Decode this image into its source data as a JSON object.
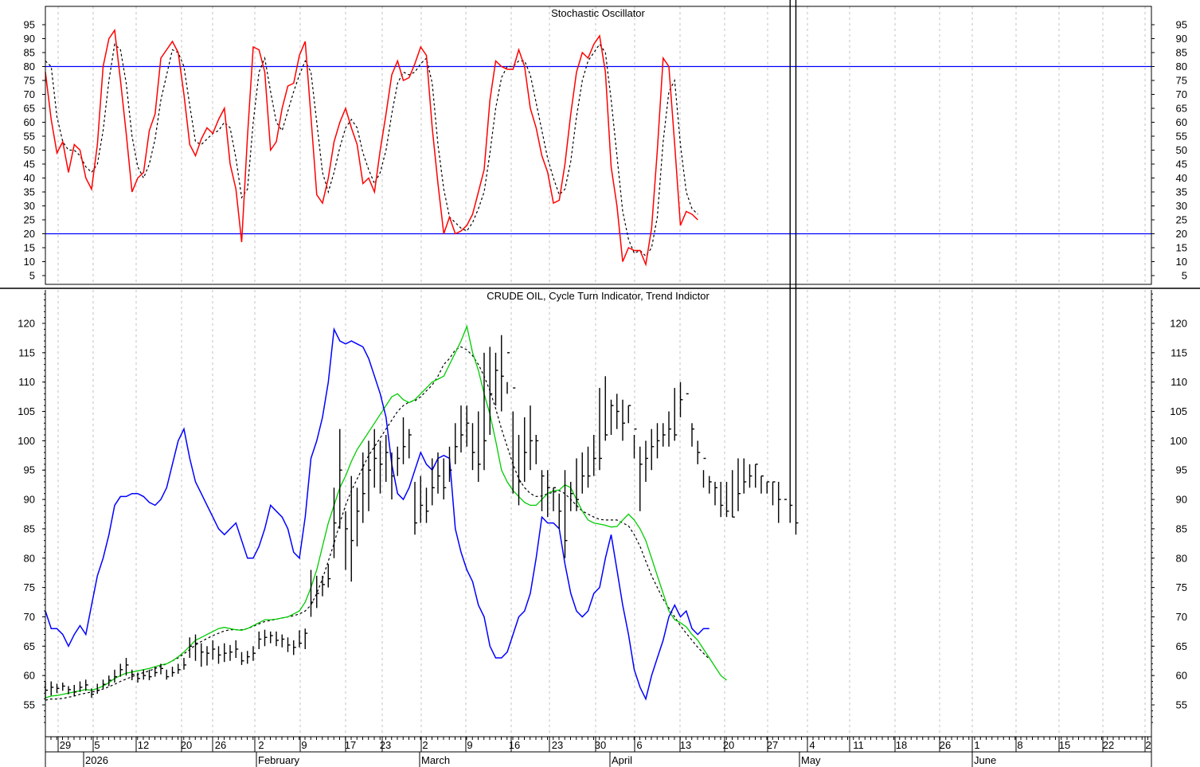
{
  "chart_data": [
    {
      "type": "line",
      "title": "Stochastic Oscillator",
      "ylim": [
        0,
        100
      ],
      "y_ticks": [
        5,
        10,
        15,
        20,
        25,
        30,
        35,
        40,
        45,
        50,
        55,
        60,
        65,
        70,
        75,
        80,
        85,
        90,
        95
      ],
      "reference_lines": [
        80,
        20
      ],
      "colors": {
        "k": "#ff0000",
        "d": "#000000",
        "ref": "#0000ff"
      },
      "series": [
        {
          "key": "k",
          "values": [
            78,
            61,
            49,
            53,
            42,
            52,
            50,
            40,
            36,
            52,
            80,
            90,
            93,
            75,
            56,
            35,
            40,
            42,
            57,
            63,
            83,
            86,
            89,
            85,
            70,
            52,
            48,
            54,
            58,
            56,
            61,
            65,
            45,
            36,
            17,
            55,
            87,
            86,
            78,
            50,
            53,
            65,
            73,
            74,
            84,
            89,
            62,
            34,
            31,
            40,
            53,
            60,
            65,
            58,
            52,
            38,
            40,
            35,
            50,
            63,
            77,
            82,
            75,
            76,
            81,
            87,
            84,
            58,
            38,
            20,
            26,
            20,
            21,
            23,
            27,
            35,
            43,
            68,
            82,
            80,
            79,
            79,
            86,
            80,
            65,
            58,
            48,
            42,
            31,
            32,
            45,
            63,
            78,
            85,
            83,
            88,
            91,
            78,
            44,
            30,
            10,
            15,
            14,
            14,
            9,
            22,
            50,
            83,
            80,
            52,
            23,
            28,
            27,
            25
          ]
        },
        {
          "key": "d",
          "values": [
            82,
            80,
            62,
            53,
            50,
            50,
            48,
            44,
            42,
            45,
            57,
            75,
            88,
            86,
            74,
            55,
            44,
            40,
            45,
            54,
            68,
            77,
            86,
            85,
            80,
            66,
            53,
            52,
            54,
            56,
            57,
            60,
            58,
            47,
            33,
            36,
            60,
            78,
            83,
            71,
            60,
            57,
            64,
            71,
            77,
            82,
            78,
            60,
            42,
            35,
            42,
            51,
            58,
            61,
            58,
            49,
            43,
            38,
            42,
            50,
            63,
            74,
            78,
            77,
            78,
            81,
            83,
            74,
            52,
            36,
            26,
            24,
            22,
            21,
            24,
            29,
            35,
            49,
            65,
            76,
            80,
            80,
            82,
            82,
            77,
            67,
            57,
            47,
            40,
            34,
            36,
            46,
            62,
            75,
            82,
            85,
            88,
            85,
            68,
            48,
            28,
            18,
            13,
            14,
            12,
            15,
            26,
            53,
            71,
            75,
            52,
            35,
            29,
            27
          ]
        }
      ],
      "x_ticks": [],
      "month_labels": []
    },
    {
      "type": "line",
      "title": "CRUDE OIL, Cycle Turn Indicator, Trend Indictor",
      "ylim": [
        51,
        125
      ],
      "y_ticks": [
        55,
        60,
        65,
        70,
        75,
        80,
        85,
        90,
        95,
        100,
        105,
        110,
        115,
        120
      ],
      "colors": {
        "price": "#000000",
        "cycle": "#0000ff",
        "trend_fast": "#00cc00",
        "trend_slow": "#000000"
      },
      "series": [
        {
          "key": "price_close",
          "values": [
            57.5,
            58,
            57.8,
            58.2,
            57.6,
            57.2,
            58,
            58.4,
            56.8,
            57.5,
            58.5,
            59.2,
            59.8,
            61,
            61.8,
            60.2,
            59.5,
            60,
            59.8,
            60.5,
            61.2,
            59.8,
            60.5,
            61,
            61.8,
            65,
            65.5,
            64,
            63.8,
            64.5,
            63.5,
            63.8,
            64,
            64.5,
            62.5,
            63.2,
            63.8,
            66.2,
            66.5,
            66.8,
            66,
            66.2,
            65.2,
            64.8,
            65.5,
            67.2,
            72.5,
            74,
            75.5,
            76.5,
            86,
            95,
            85,
            83,
            88,
            91,
            95,
            97,
            96,
            98,
            94,
            97,
            99,
            101,
            86,
            89,
            88,
            92,
            94,
            92,
            95,
            99,
            101,
            103,
            98,
            96,
            100,
            108,
            112,
            111,
            115,
            109,
            93,
            98,
            100,
            100,
            94,
            92,
            92,
            88,
            83,
            91,
            90,
            94,
            94,
            97,
            97,
            101,
            106,
            105,
            103,
            106,
            102,
            96,
            97,
            99,
            100,
            101,
            102,
            101,
            107,
            108,
            102,
            98,
            97,
            93,
            92,
            89,
            88,
            87,
            91,
            93,
            94,
            96,
            94,
            93,
            93,
            90,
            90,
            89,
            86
          ],
          "highs": [
            59,
            59,
            58.6,
            58.8,
            58.2,
            58.4,
            59,
            59.3,
            57.8,
            58.6,
            59.3,
            60,
            61,
            62,
            63,
            61,
            60.5,
            61,
            61,
            61.5,
            62,
            61,
            61.5,
            62,
            63,
            66.5,
            67,
            65.5,
            65,
            66,
            65,
            65.5,
            65.2,
            66,
            64,
            64.2,
            65,
            67.5,
            67.8,
            67.5,
            67.5,
            67,
            66.5,
            66,
            67.7,
            68,
            78,
            77,
            77,
            79,
            92,
            102,
            88,
            94,
            92,
            98,
            100,
            102,
            100,
            101,
            98,
            99,
            104,
            102,
            93,
            94,
            92,
            97,
            98,
            97,
            99,
            103,
            106,
            106,
            103,
            105,
            115,
            116,
            115,
            118,
            110,
            105,
            101,
            104,
            106,
            101,
            95,
            95,
            92,
            91,
            95,
            93,
            97,
            98,
            99,
            101,
            109,
            111,
            107,
            108,
            107,
            106,
            101,
            99,
            100,
            102,
            103,
            103,
            105,
            109,
            110,
            105,
            103,
            100,
            95,
            94,
            93,
            93,
            93,
            95,
            97,
            97,
            96,
            96,
            94,
            93,
            93,
            93,
            87
          ],
          "lows": [
            56,
            56.6,
            57,
            57.4,
            56.8,
            56.5,
            57.2,
            57.4,
            56.2,
            56.9,
            57.8,
            58.2,
            58.8,
            59.8,
            60,
            59.2,
            58.8,
            59.3,
            59.2,
            59.8,
            60.2,
            59.3,
            59.8,
            60.3,
            61,
            63,
            62.5,
            61.5,
            61.7,
            62.7,
            62,
            62.3,
            62.5,
            63,
            61.8,
            62,
            62.5,
            64.5,
            65,
            65.5,
            65,
            64.8,
            64,
            63.5,
            64.8,
            64.5,
            70,
            71.5,
            73.5,
            75,
            80,
            85,
            78,
            76,
            82,
            86,
            88,
            92,
            91,
            93,
            90,
            94,
            96,
            97,
            84,
            86,
            86,
            89,
            91,
            90,
            93,
            96,
            98,
            99,
            95,
            93,
            95,
            101,
            106,
            105,
            108,
            91,
            89,
            93,
            95,
            96,
            88,
            87,
            88,
            85,
            80,
            88,
            88,
            91,
            92,
            94,
            95,
            100,
            101,
            102,
            100,
            103,
            97,
            88,
            93,
            95,
            97,
            99,
            99,
            100,
            104,
            105,
            99,
            96,
            92,
            91,
            89,
            87,
            87,
            87,
            88,
            91,
            92,
            92,
            91,
            91,
            89,
            86,
            87,
            86,
            84
          ]
        },
        {
          "key": "cycle_turn",
          "values": [
            71,
            68,
            68,
            67,
            65,
            67,
            68.5,
            67,
            72,
            77,
            80,
            84,
            89,
            90.5,
            90.5,
            91,
            91,
            90.5,
            89.5,
            89,
            90,
            92,
            96,
            100,
            102,
            97,
            93,
            91,
            89,
            87,
            85,
            84,
            85,
            86,
            83,
            80,
            80,
            82,
            85,
            89,
            88,
            87,
            85,
            81,
            80,
            87,
            97,
            100,
            104,
            110,
            119,
            117,
            116.5,
            117,
            116.5,
            116,
            114,
            111,
            108,
            104,
            96,
            91,
            90,
            92,
            95,
            98,
            96,
            95,
            97,
            97.5,
            97,
            85,
            81,
            78,
            76,
            72,
            70,
            65,
            63,
            63,
            64,
            67,
            70,
            71,
            74,
            80,
            87,
            86,
            86,
            85,
            79,
            74,
            71,
            70,
            71,
            74,
            75,
            80,
            84,
            78,
            72,
            67,
            61,
            58,
            56,
            60,
            63,
            66,
            70,
            72,
            70,
            71,
            68,
            67,
            68,
            68
          ],
          "note": "blue cycle line"
        },
        {
          "key": "trend_fast",
          "values": [
            56.2,
            56.5,
            56.6,
            56.8,
            57,
            57.2,
            57.4,
            57.6,
            57.5,
            57.8,
            58.2,
            58.8,
            59.5,
            60,
            60.4,
            60.6,
            60.8,
            61,
            61.2,
            61.5,
            61.8,
            62,
            62.5,
            63.2,
            64,
            65,
            66,
            66.5,
            67,
            67.5,
            68,
            68.2,
            68,
            67.8,
            67.7,
            68,
            68.5,
            69,
            69.5,
            69.5,
            69.6,
            69.8,
            70,
            70.5,
            71,
            72.5,
            75,
            78,
            82,
            86,
            89,
            92,
            94,
            96.5,
            98.5,
            100,
            101.5,
            103,
            104.5,
            106,
            107.5,
            108,
            107,
            106.5,
            107,
            108,
            109,
            110,
            110.5,
            111,
            113,
            115,
            117,
            119.5,
            115,
            112,
            108,
            104.5,
            100,
            95,
            93,
            91.5,
            90.5,
            89.5,
            89,
            89,
            90,
            91,
            91.5,
            91.6,
            92.5,
            92,
            90,
            88,
            86.5,
            86,
            85.8,
            85.6,
            85.3,
            85.4,
            86.5,
            87.5,
            86.5,
            85,
            83,
            80,
            77,
            74,
            71,
            69.5,
            69,
            68.3,
            67,
            66,
            64.5,
            63,
            61.5,
            60,
            59.2
          ]
        },
        {
          "key": "trend_slow",
          "values": [
            55.8,
            56,
            56,
            56.1,
            56.3,
            56.5,
            56.8,
            57,
            57.2,
            57.4,
            57.7,
            58.1,
            58.5,
            59,
            59.4,
            59.8,
            60.2,
            60.5,
            60.8,
            61.2,
            61.6,
            62,
            62.5,
            63,
            63.7,
            64.4,
            65.2,
            65.8,
            66.3,
            66.8,
            67.2,
            67.6,
            67.8,
            67.8,
            67.8,
            68,
            68.4,
            68.8,
            69.2,
            69.4,
            69.6,
            69.8,
            70,
            70.2,
            70.5,
            71,
            72,
            74,
            76.5,
            79.5,
            82.5,
            86,
            89,
            91.5,
            93.5,
            95.5,
            97.5,
            99,
            100.5,
            102,
            103.5,
            105,
            106,
            106.6,
            106.8,
            107.5,
            108.5,
            109.5,
            111,
            113,
            114,
            115.5,
            116,
            115.5,
            114.5,
            113,
            111,
            108.5,
            105.5,
            102,
            99,
            96,
            93.5,
            92,
            91,
            90.5,
            90.6,
            91,
            91.2,
            91.5,
            91,
            90,
            89,
            88,
            87.5,
            87,
            86.6,
            86.5,
            86.5,
            86.5,
            86,
            85.5,
            84,
            82,
            79.5,
            77,
            75,
            73,
            71.5,
            70,
            68.5,
            67.2,
            66,
            64.8,
            63.8,
            62.8
          ]
        }
      ],
      "x_ticks": [
        "29",
        "5",
        "12",
        "20",
        "26",
        "2",
        "9",
        "17",
        "23",
        "2",
        "9",
        "16",
        "23",
        "30",
        "6",
        "13",
        "20",
        "27",
        "4",
        "11",
        "18",
        "26",
        "1",
        "8",
        "15",
        "22",
        "2"
      ],
      "month_labels": [
        "2026",
        "February",
        "March",
        "April",
        "May",
        "June"
      ]
    }
  ]
}
